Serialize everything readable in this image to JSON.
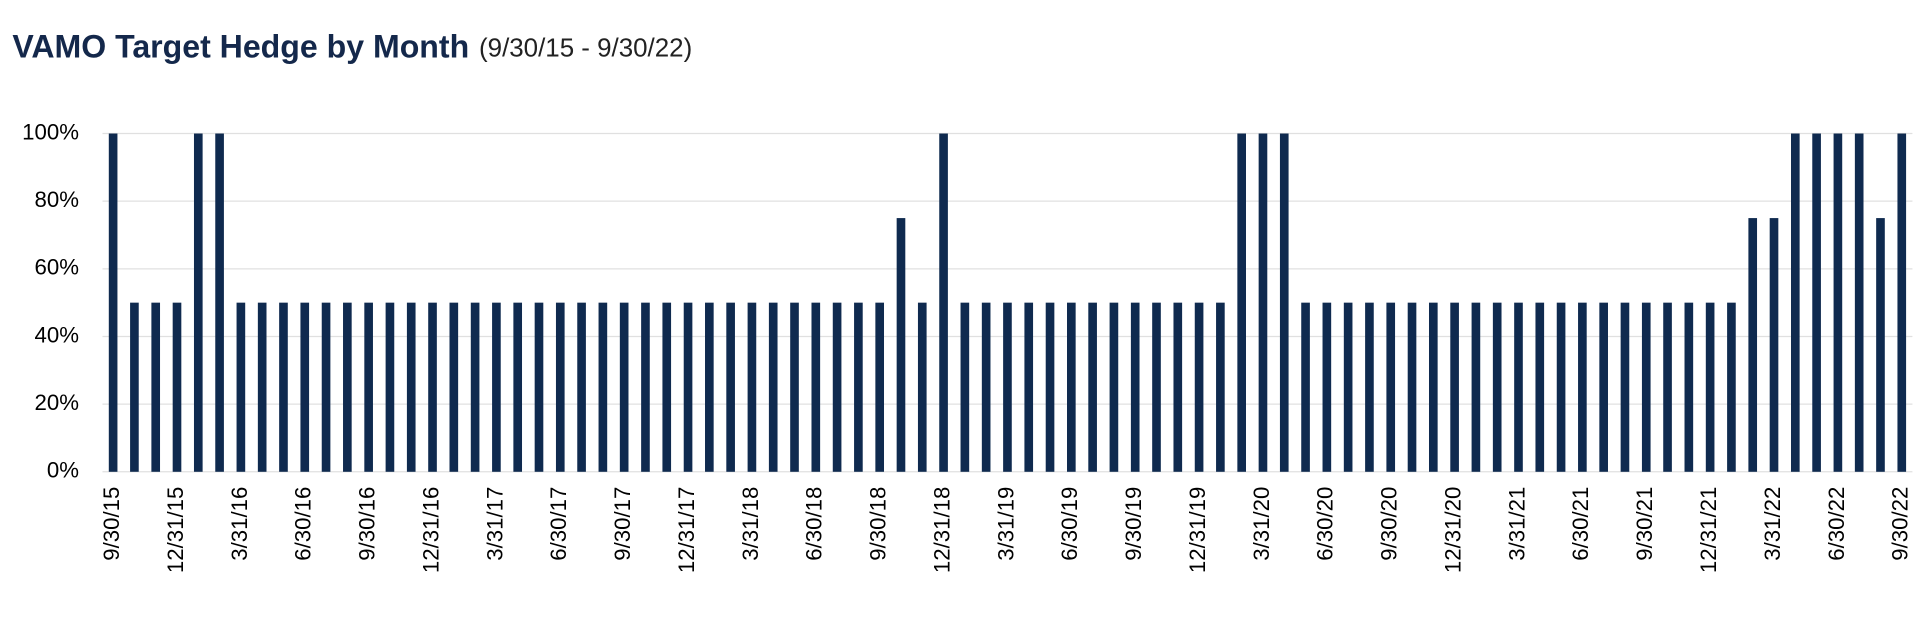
{
  "chart_data": {
    "type": "bar",
    "title": "VAMO Target Hedge by Month",
    "subtitle": "(9/30/15 - 9/30/22)",
    "categories": [
      "9/30/15",
      null,
      null,
      "12/31/15",
      null,
      null,
      "3/31/16",
      null,
      null,
      "6/30/16",
      null,
      null,
      "9/30/16",
      null,
      null,
      "12/31/16",
      null,
      null,
      "3/31/17",
      null,
      null,
      "6/30/17",
      null,
      null,
      "9/30/17",
      null,
      null,
      "12/31/17",
      null,
      null,
      "3/31/18",
      null,
      null,
      "6/30/18",
      null,
      null,
      "9/30/18",
      null,
      null,
      "12/31/18",
      null,
      null,
      "3/31/19",
      null,
      null,
      "6/30/19",
      null,
      null,
      "9/30/19",
      null,
      null,
      "12/31/19",
      null,
      null,
      "3/31/20",
      null,
      null,
      "6/30/20",
      null,
      null,
      "9/30/20",
      null,
      null,
      "12/31/20",
      null,
      null,
      "3/31/21",
      null,
      null,
      "6/30/21",
      null,
      null,
      "9/30/21",
      null,
      null,
      "12/31/21",
      null,
      null,
      "3/31/22",
      null,
      null,
      "6/30/22",
      null,
      null,
      "9/30/22"
    ],
    "values": [
      100,
      50,
      50,
      50,
      100,
      100,
      50,
      50,
      50,
      50,
      50,
      50,
      50,
      50,
      50,
      50,
      50,
      50,
      50,
      50,
      50,
      50,
      50,
      50,
      50,
      50,
      50,
      50,
      50,
      50,
      50,
      50,
      50,
      50,
      50,
      50,
      50,
      75,
      50,
      100,
      50,
      50,
      50,
      50,
      50,
      50,
      50,
      50,
      50,
      50,
      50,
      50,
      50,
      100,
      100,
      100,
      50,
      50,
      50,
      50,
      50,
      50,
      50,
      50,
      50,
      50,
      50,
      50,
      50,
      50,
      50,
      50,
      50,
      50,
      50,
      50,
      50,
      75,
      75,
      100,
      100,
      100,
      100,
      75,
      100
    ],
    "color": "#0f2a4f",
    "ylim": [
      0,
      100
    ],
    "yticks": [
      {
        "value": 0,
        "label": "0%"
      },
      {
        "value": 20,
        "label": "20%"
      },
      {
        "value": 40,
        "label": "40%"
      },
      {
        "value": 60,
        "label": "60%"
      },
      {
        "value": 80,
        "label": "80%"
      },
      {
        "value": 100,
        "label": "100%"
      }
    ],
    "grid": true
  }
}
